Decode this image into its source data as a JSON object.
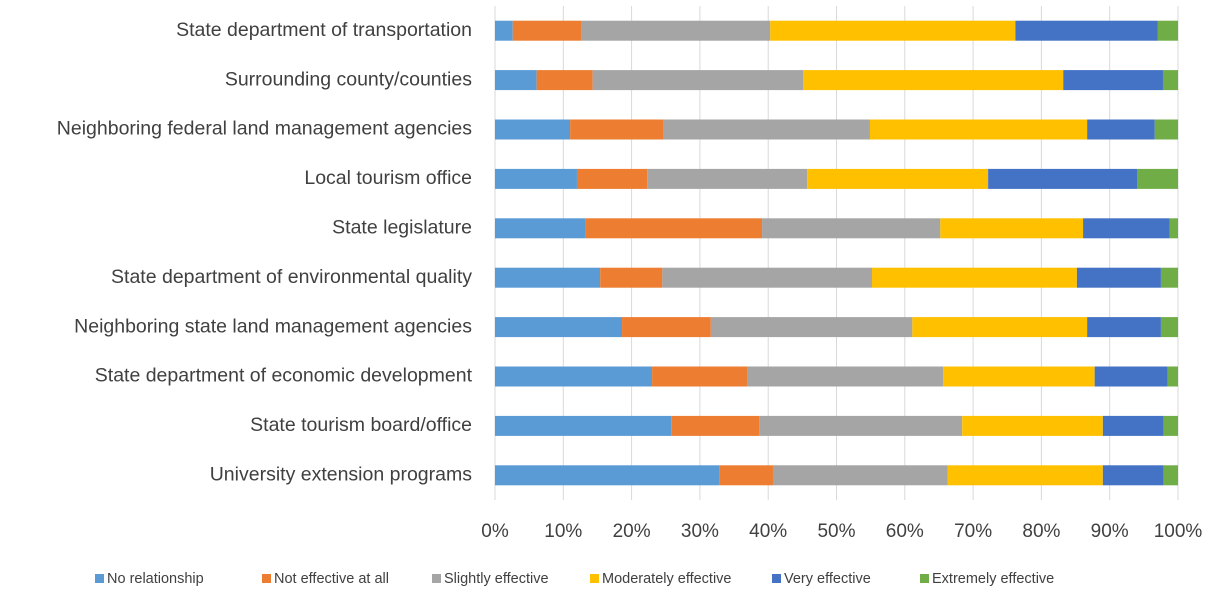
{
  "chart_data": {
    "type": "stacked_bar_horizontal",
    "categories": [
      "State department of transportation",
      "Surrounding county/counties",
      "Neighboring federal land management agencies",
      "Local tourism office",
      "State legislature",
      "State department of environmental quality",
      "Neighboring state land management agencies",
      "State department of economic development",
      "State tourism board/office",
      "University extension programs"
    ],
    "series": [
      {
        "name": "No relationship",
        "color": "#5b9bd5",
        "values": [
          2.6,
          6.1,
          11.0,
          12.0,
          13.3,
          15.4,
          18.6,
          23.0,
          25.8,
          32.9
        ]
      },
      {
        "name": "Not effective at all",
        "color": "#ed7d31",
        "values": [
          10.1,
          8.2,
          13.6,
          10.3,
          25.8,
          9.1,
          13.0,
          14.0,
          12.9,
          7.8
        ]
      },
      {
        "name": "Slightly effective",
        "color": "#a5a5a5",
        "values": [
          27.6,
          30.8,
          30.3,
          23.4,
          26.1,
          30.7,
          29.5,
          28.6,
          29.7,
          25.6
        ]
      },
      {
        "name": "Moderately effective",
        "color": "#ffc000",
        "values": [
          35.9,
          38.1,
          31.8,
          26.5,
          20.9,
          30.0,
          25.6,
          22.2,
          20.6,
          22.7
        ]
      },
      {
        "name": "Very effective",
        "color": "#4472c4",
        "values": [
          20.8,
          14.6,
          9.9,
          21.8,
          12.7,
          12.3,
          10.8,
          10.7,
          8.9,
          8.9
        ]
      },
      {
        "name": "Extremely effective",
        "color": "#70ad47",
        "values": [
          3.0,
          2.2,
          3.4,
          6.0,
          1.2,
          2.5,
          2.5,
          1.5,
          2.1,
          2.1
        ]
      }
    ],
    "xlim": [
      0,
      100
    ],
    "xticks": [
      {
        "value": 0,
        "label": "0%"
      },
      {
        "value": 10,
        "label": "10%"
      },
      {
        "value": 20,
        "label": "20%"
      },
      {
        "value": 30,
        "label": "30%"
      },
      {
        "value": 40,
        "label": "40%"
      },
      {
        "value": 50,
        "label": "50%"
      },
      {
        "value": 60,
        "label": "60%"
      },
      {
        "value": 70,
        "label": "70%"
      },
      {
        "value": 80,
        "label": "80%"
      },
      {
        "value": 90,
        "label": "90%"
      },
      {
        "value": 100,
        "label": "100%"
      }
    ],
    "grid": true,
    "legend": "bottom"
  }
}
